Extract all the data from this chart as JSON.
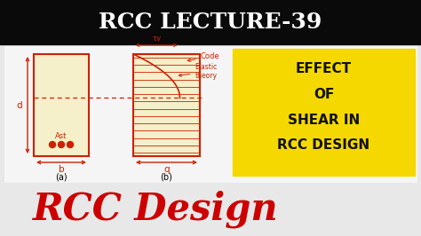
{
  "bg_color": "#f0f0f0",
  "header_bg": "#0a0a0a",
  "header_text": "RCC LECTURE-39",
  "header_text_color": "#ffffff",
  "diagram_bg": "#f5efca",
  "diagram_border": "#cc2200",
  "yellow_box_bg": "#f5d800",
  "effect_text": [
    "EFFECT",
    "OF",
    "SHEAR IN",
    "RCC DESIGN"
  ],
  "effect_text_color": "#111111",
  "rcc_design_text": "RCC Design",
  "rcc_design_color": "#cc0000",
  "label_d": "d",
  "label_b": "b",
  "label_ast": "Ast",
  "label_a": "(a)",
  "label_b2": "(b)",
  "label_tau": "τv",
  "label_q": "q",
  "label_code": "Code",
  "label_elastic": "Elastic\ntheory",
  "diagram_line_color": "#cc2200",
  "dashed_line_color": "#cc2200",
  "hatch_color": "#cc2200",
  "dot_color": "#cc2200",
  "overall_bg": "#e8e8e8"
}
